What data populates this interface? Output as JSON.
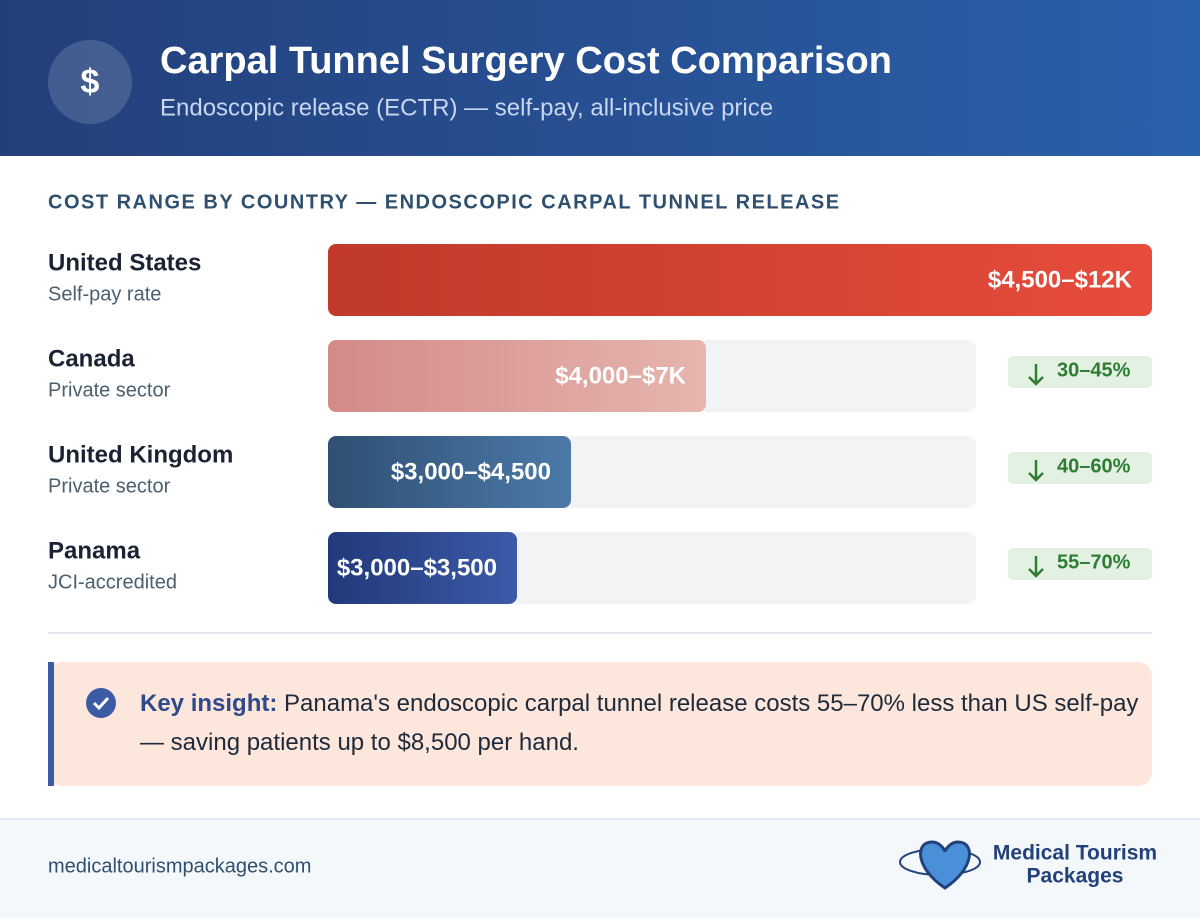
{
  "header": {
    "title": "Carpal Tunnel Surgery Cost Comparison",
    "subtitle": "Endoscopic release (ECTR) — self-pay, all-inclusive price",
    "icon": "$"
  },
  "chart_data": {
    "type": "bar",
    "orientation": "horizontal",
    "title": "COST RANGE BY COUNTRY — ENDOSCOPIC CARPAL TUNNEL RELEASE",
    "categories": [
      "United States",
      "Canada",
      "United Kingdom",
      "Panama"
    ],
    "subtitles": [
      "Self-pay rate",
      "Private sector",
      "Private sector",
      "JCI-accredited"
    ],
    "values": [
      12000,
      7000,
      4500,
      3500
    ],
    "value_labels": [
      "$4,500–$12K",
      "$4,000–$7K",
      "$3,000–$4,500",
      "$3,000–$3,500"
    ],
    "badges": [
      null,
      "30–45%",
      "40–60%",
      "55–70%"
    ],
    "colors": [
      [
        "#c0392b",
        "#e74c3c"
      ],
      [
        "#d48a88",
        "#e6b5ae"
      ],
      [
        "#2f4f73",
        "#4c7aa8"
      ],
      [
        "#22397a",
        "#3b5aa8"
      ]
    ],
    "xlim": [
      0,
      12000
    ]
  },
  "insight": {
    "label": "Key insight:",
    "text": "Panama's endoscopic carpal tunnel release costs 55–70% less than US self-pay — saving patients up to $8,500 per hand."
  },
  "footer": {
    "url": "medicaltourismpackages.com",
    "logo_line1": "Medical Tourism",
    "logo_line2": "Packages"
  }
}
